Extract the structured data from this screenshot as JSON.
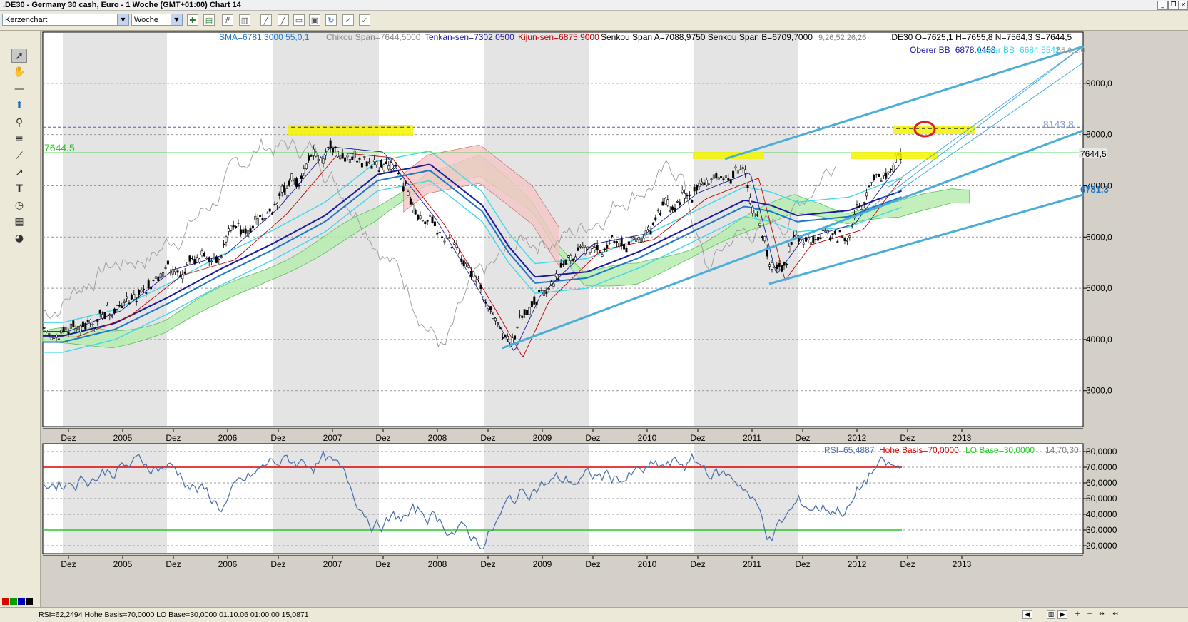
{
  "window": {
    "title": ".DE30 - Germany 30 cash, Euro - 1 Woche (GMT+01:00)   Chart 14",
    "min_icon": "minimize-icon",
    "max_icon": "restore-icon",
    "close_icon": "close-icon"
  },
  "toolbar": {
    "chart_type": "Kerzenchart",
    "period": "Woche",
    "buttons": [
      "add-indicator-icon",
      "template-icon",
      "grid-icon",
      "bar-chart-icon",
      "line-chart-icon",
      "print-icon",
      "save-icon",
      "refresh-icon",
      "trading-icon",
      "order-icon"
    ]
  },
  "left_tools": [
    "cursor-icon",
    "hand-icon",
    "horizontal-line-icon",
    "arrow-up-icon",
    "zoom-icon",
    "fibonacci-icon",
    "fan-icon",
    "trendline-icon",
    "text-icon",
    "clock-icon",
    "calculator-icon",
    "palette-icon"
  ],
  "swatch_colors": [
    "#e00000",
    "#00a000",
    "#0000c0",
    "#000000",
    "#ffff00"
  ],
  "price_legend": {
    "sma": "SMA=6781,3000  55,0,1",
    "chikou": "Chikou Span=7644,5000",
    "tenkan": "Tenkan-sen=7302,0500",
    "kijun": "Kijun-sen=6875,9000",
    "senkou": "Senkou Span A=7088,9750 Senkou Span B=6709,7000",
    "ichi_params": "9,26,52,26,26",
    "ohlc": ".DE30 O=7625,1 H=7655,8 N=7564,3 S=7644,5",
    "upper_bb": "Oberer BB=6878,0458",
    "lower_bb": "Lower BB=6684,5542",
    "bb_params": "55,0,2,0"
  },
  "price_panel": {
    "y_ticks": [
      "9000,0",
      "8000,0",
      "7000,0",
      "6000,0",
      "5000,0",
      "4000,0",
      "3000,0"
    ],
    "last_price_label": "7644,5",
    "last_price_left": "7644,5",
    "resistance_label": "8143,8",
    "sma_right_label": "6781,3"
  },
  "x_axis": {
    "labels": [
      "Dez",
      "2005",
      "Dez",
      "2006",
      "Dez",
      "2007",
      "Dez",
      "2008",
      "Dez",
      "2009",
      "Dez",
      "2010",
      "Dez",
      "2011",
      "Dez",
      "2012",
      "Dez",
      "2013"
    ]
  },
  "rsi_legend": {
    "rsi": "RSI=65,4887",
    "high": "Hohe Basis=70,0000",
    "low": "LO Base=30,0000",
    "params": "14,70,30"
  },
  "rsi_panel": {
    "y_ticks": [
      "80,0000",
      "70,0000",
      "60,0000",
      "50,0000",
      "40,0000",
      "30,0000",
      "20,0000"
    ]
  },
  "chart_data": {
    "type": "line",
    "title": ".DE30 - Germany 30 cash, Euro - 1 Woche",
    "x": [
      "2004-12",
      "2005-06",
      "2005-12",
      "2006-06",
      "2006-12",
      "2007-06",
      "2007-12",
      "2008-06",
      "2008-12",
      "2009-03",
      "2009-06",
      "2009-12",
      "2010-06",
      "2010-12",
      "2011-06",
      "2011-09",
      "2011-12",
      "2012-06",
      "2012-09",
      "2012-12"
    ],
    "series": [
      {
        "name": ".DE30",
        "values": [
          4200,
          4600,
          5400,
          5700,
          6600,
          7800,
          7700,
          6400,
          4700,
          3800,
          4900,
          5900,
          6100,
          6900,
          7300,
          5300,
          6000,
          6300,
          7000,
          7644.5
        ]
      },
      {
        "name": "SMA",
        "values": [
          3950,
          4200,
          4700,
          5250,
          5750,
          6300,
          7100,
          7300,
          6500,
          5700,
          5100,
          5200,
          5600,
          6100,
          6600,
          6500,
          6300,
          6400,
          6600,
          6781.3
        ]
      }
    ],
    "rsi": {
      "name": "RSI",
      "values": [
        62,
        70,
        72,
        45,
        72,
        75,
        35,
        40,
        22,
        45,
        60,
        62,
        65,
        72,
        60,
        25,
        45,
        45,
        70,
        65.49
      ],
      "high_base": 70,
      "low_base": 30
    },
    "ylim": [
      2300,
      10000
    ],
    "rsi_ylim": [
      15,
      85
    ],
    "horizontal_levels": [
      8143.8,
      7644.5
    ],
    "grid": true
  }
}
